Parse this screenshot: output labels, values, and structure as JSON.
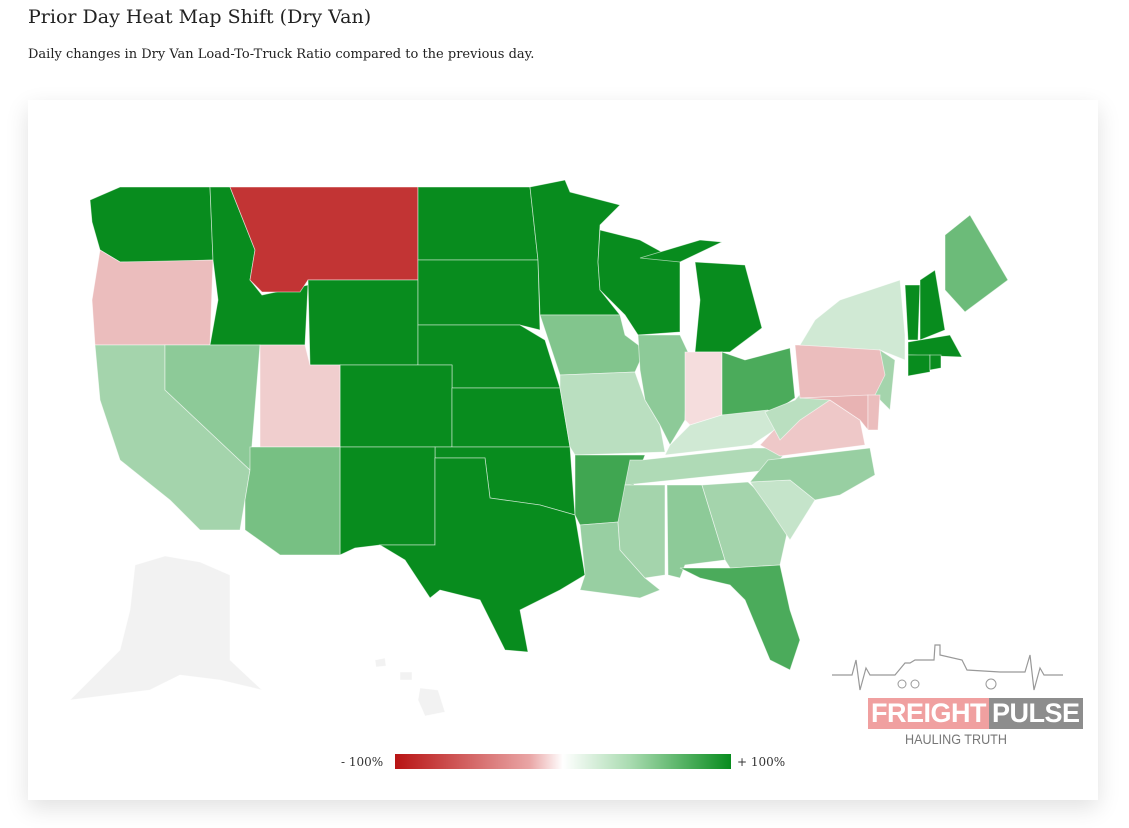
{
  "header": {
    "title": "Prior Day Heat Map Shift (Dry Van)",
    "subtitle": "Daily changes in Dry Van Load-To-Truck Ratio compared to the previous day."
  },
  "legend": {
    "min_label": "- 100%",
    "max_label": "+ 100%",
    "colors": {
      "negative": "#b81414",
      "neutral": "#ffffff",
      "positive": "#088c1e",
      "no_data": "#f2f2f2"
    }
  },
  "logo": {
    "word1": "FREIGHT",
    "word2": "PULSE",
    "tagline": "HAULING TRUTH"
  },
  "chart_data": {
    "type": "choropleth",
    "metric": "Daily change in Dry Van Load-To-Truck Ratio",
    "range": [
      -1,
      1
    ],
    "states": {
      "WA": 1,
      "OR": -0.2,
      "ID": 1,
      "MT": -0.85,
      "WY": 1,
      "ND": 1,
      "SD": 1,
      "NE": 1,
      "CO": 1,
      "KS": 1,
      "OK": 1,
      "NM": 1,
      "TX": 1,
      "CA": 0.3,
      "NV": 0.4,
      "UT": -0.12,
      "AZ": 0.5,
      "MN": 1,
      "IA": 0.45,
      "MO": 0.2,
      "AR": 0.75,
      "LA": 0.35,
      "WI": 1,
      "IL": 0.4,
      "MI": 1,
      "IN": -0.05,
      "OH": 0.7,
      "KY": 0.1,
      "TN": 0.25,
      "MS": 0.3,
      "AL": 0.4,
      "GA": 0.3,
      "FL": 0.7,
      "SC": 0.15,
      "NC": 0.35,
      "VA": -0.15,
      "WV": 0.2,
      "PA": -0.2,
      "NY": 0.1,
      "NJ": 0.3,
      "MD": -0.25,
      "DE": -0.2,
      "ME": 0.55,
      "VT": 1,
      "NH": 1,
      "MA": 1,
      "CT": 1,
      "RI": 1,
      "AK": null,
      "HI": null
    }
  }
}
